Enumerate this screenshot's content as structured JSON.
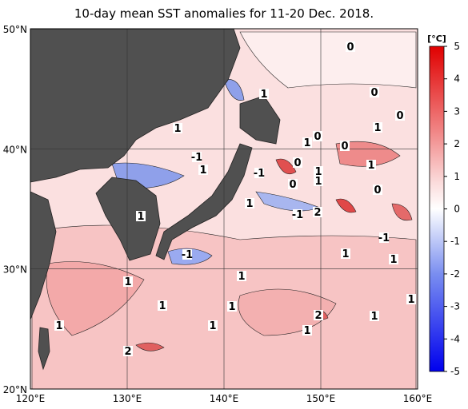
{
  "title": "10-day mean SST anomalies for 11-20 Dec. 2018.",
  "map": {
    "lon_labels": [
      "120°E",
      "130°E",
      "140°E",
      "150°E",
      "160°E"
    ],
    "lat_labels": [
      "50°N",
      "40°N",
      "30°N",
      "20°N"
    ]
  },
  "colorbar": {
    "unit": "[°C]",
    "ticks": [
      5,
      4,
      3,
      2,
      1,
      0,
      -1,
      -2,
      -3,
      -4,
      -5
    ]
  },
  "contour_labels": [
    "0",
    "1",
    "0",
    "0",
    "1",
    "1",
    "1",
    "0",
    "0",
    "-1",
    "0",
    "1",
    "-1",
    "1",
    "1",
    "1",
    "0",
    "0",
    "1",
    "-1",
    "2",
    "1",
    "-1",
    "-1",
    "1",
    "1",
    "1",
    "1",
    "1",
    "1",
    "1",
    "2",
    "1",
    "1",
    "1",
    "1",
    "2"
  ]
}
